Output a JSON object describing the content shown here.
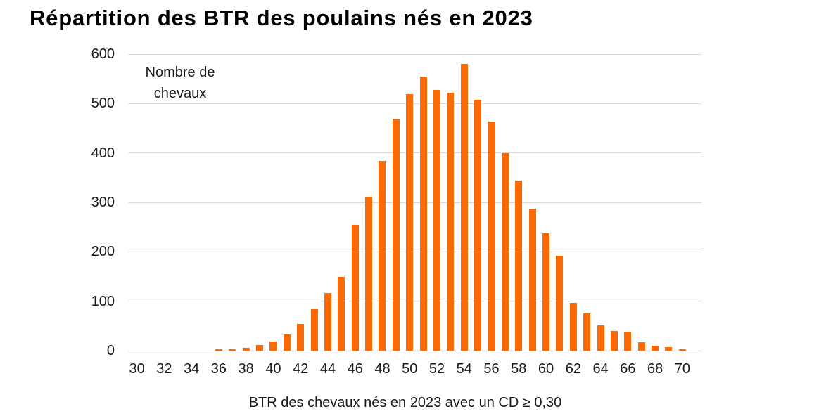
{
  "title": "Répartition des BTR des poulains nés en 2023",
  "chart_data": {
    "type": "bar",
    "title": "Répartition des BTR des poulains nés en 2023",
    "annotation": {
      "line1": "Nombre de",
      "line2": "chevaux"
    },
    "xlabel": "BTR des chevaux nés en 2023 avec un CD ≥ 0,30",
    "ylabel": "Nombre de chevaux",
    "x": [
      36,
      37,
      38,
      39,
      40,
      41,
      42,
      43,
      44,
      45,
      46,
      47,
      48,
      49,
      50,
      51,
      52,
      53,
      54,
      55,
      56,
      57,
      58,
      59,
      60,
      61,
      62,
      63,
      64,
      65,
      66,
      67,
      68,
      69,
      70
    ],
    "values": [
      2,
      3,
      5,
      12,
      19,
      32,
      54,
      84,
      117,
      149,
      254,
      312,
      384,
      469,
      519,
      555,
      527,
      522,
      580,
      507,
      463,
      399,
      344,
      287,
      237,
      192,
      97,
      75,
      51,
      40,
      38,
      17,
      10,
      7,
      2
    ],
    "x_ticks": [
      30,
      32,
      34,
      36,
      38,
      40,
      42,
      44,
      46,
      48,
      50,
      52,
      54,
      56,
      58,
      60,
      62,
      64,
      66,
      68,
      70
    ],
    "y_ticks": [
      0,
      100,
      200,
      300,
      400,
      500,
      600
    ],
    "ylim": [
      0,
      600
    ],
    "xlim": [
      29.4,
      71.4
    ],
    "grid": "horizontal",
    "legend": "none",
    "colors": {
      "bar": "#fb6a02",
      "gridline": "#d9d9d9",
      "text": "#1a1a1a",
      "title": "#000000",
      "background": "#ffffff"
    }
  }
}
